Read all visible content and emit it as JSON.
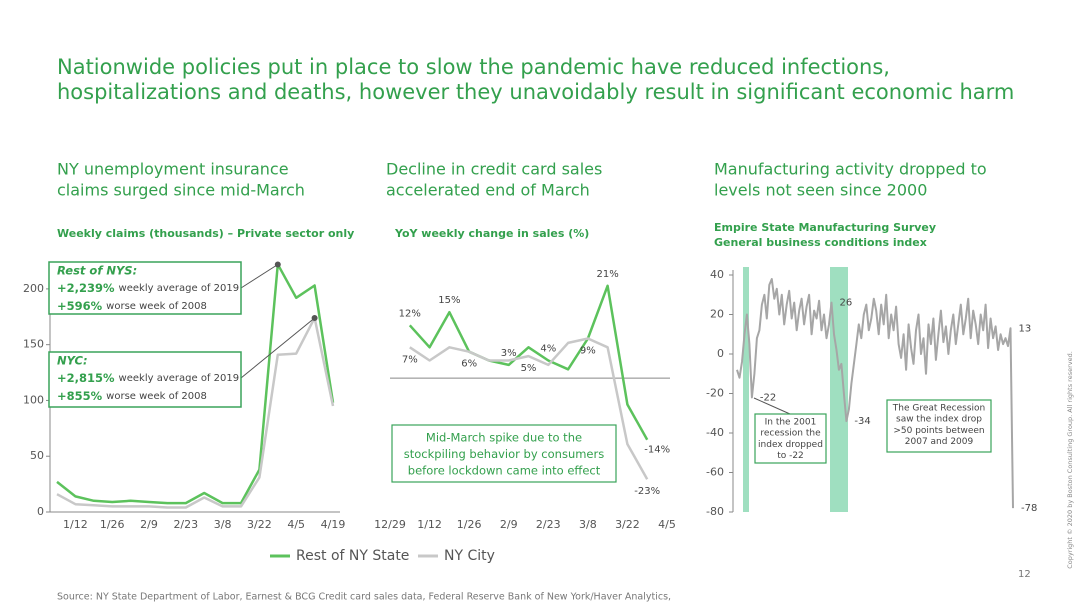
{
  "title": [
    "Nationwide policies put in place to slow the pandemic have reduced infections,",
    "hospitalizations and deaths, however they unavoidably result in significant economic harm"
  ],
  "chart_data": [
    {
      "type": "line",
      "title": [
        "NY unemployment insurance",
        "claims surged since mid-March"
      ],
      "subtitle": "Weekly claims (thousands) – Private sector only",
      "categories": [
        null,
        "1/12",
        null,
        "1/26",
        null,
        "2/9",
        null,
        "2/23",
        null,
        "3/8",
        null,
        "3/22",
        null,
        "4/5",
        null,
        "4/19"
      ],
      "series": [
        {
          "name": "Rest of NY State",
          "color": "#5cc25c",
          "values": [
            27,
            14,
            10,
            9,
            10,
            9,
            8,
            8,
            17,
            8,
            8,
            38,
            222,
            192,
            203,
            98
          ]
        },
        {
          "name": "NY City",
          "color": "#c8c8c8",
          "values": [
            16,
            7,
            6,
            5,
            5,
            5,
            4,
            4,
            13,
            5,
            5,
            31,
            141,
            142,
            174,
            95
          ]
        }
      ],
      "ylim": [
        0,
        225
      ],
      "yticks": [
        0,
        50,
        100,
        150,
        200
      ],
      "annotations": [
        {
          "heading": "Rest of NYS:",
          "lines": [
            {
              "value": "+2,239%",
              "text": "weekly average of 2019"
            },
            {
              "value": "+596%",
              "text": "worse week of 2008"
            }
          ]
        },
        {
          "heading": "NYC:",
          "lines": [
            {
              "value": "+2,815%",
              "text": "weekly average of 2019"
            },
            {
              "value": "+855%",
              "text": "worse week of 2008"
            }
          ]
        }
      ]
    },
    {
      "type": "line",
      "title": [
        "Decline in credit card sales",
        "accelerated end of March"
      ],
      "subtitle": "YoY weekly change in sales (%)",
      "categories": [
        "12/29",
        null,
        "1/12",
        null,
        "1/26",
        null,
        "2/9",
        null,
        "2/23",
        null,
        "3/8",
        null,
        "3/22",
        null,
        "4/5"
      ],
      "series": [
        {
          "name": "Rest of NY State",
          "color": "#5cc25c",
          "values": [
            null,
            12,
            7,
            15,
            6,
            4,
            3,
            7,
            4,
            2,
            9,
            21,
            -6,
            -14,
            null
          ],
          "value_labels": [
            null,
            "12%",
            null,
            "15%",
            null,
            null,
            "3%",
            null,
            "4%",
            null,
            null,
            "21%",
            null,
            "-14%",
            null
          ]
        },
        {
          "name": "NY City",
          "color": "#c8c8c8",
          "values": [
            null,
            7,
            4,
            7,
            6,
            4,
            4,
            5,
            3,
            8,
            9,
            7,
            -15,
            -23,
            null
          ],
          "value_labels": [
            null,
            "7%",
            null,
            null,
            "6%",
            null,
            null,
            "5%",
            null,
            null,
            "9%",
            null,
            null,
            "-23%",
            null
          ]
        }
      ],
      "ylim": [
        -30,
        28
      ],
      "annotations": [
        {
          "lines": [
            "Mid-March spike due to the",
            "stockpiling behavior by consumers",
            "before lockdown came into effect"
          ]
        }
      ]
    },
    {
      "type": "line",
      "title": [
        "Manufacturing activity dropped to",
        "levels not seen since 2000"
      ],
      "subtitle": [
        "Empire State Manufacturing Survey",
        "General business conditions index"
      ],
      "series": [
        {
          "color": "#a6a6a6",
          "values": [
            -8,
            -12,
            -4,
            10,
            20,
            5,
            -22,
            -10,
            8,
            12,
            25,
            30,
            18,
            35,
            38,
            28,
            33,
            20,
            30,
            15,
            25,
            32,
            18,
            26,
            12,
            22,
            28,
            15,
            24,
            30,
            10,
            22,
            18,
            27,
            12,
            20,
            8,
            15,
            26,
            10,
            2,
            -8,
            -5,
            -20,
            -34,
            -28,
            -15,
            -5,
            5,
            15,
            8,
            20,
            25,
            12,
            18,
            28,
            22,
            10,
            25,
            15,
            30,
            8,
            20,
            12,
            24,
            5,
            -2,
            10,
            -8,
            15,
            3,
            -5,
            12,
            20,
            0,
            8,
            -10,
            15,
            5,
            18,
            -3,
            10,
            22,
            6,
            14,
            0,
            12,
            20,
            5,
            15,
            25,
            10,
            18,
            28,
            8,
            22,
            15,
            5,
            20,
            12,
            25,
            3,
            18,
            8,
            14,
            2,
            10,
            5,
            8,
            4,
            13,
            -78
          ],
          "value_labels": [
            null,
            null,
            null,
            null,
            null,
            null,
            "-22",
            null,
            null,
            null,
            null,
            null,
            null,
            null,
            null,
            null,
            null,
            null,
            null,
            null,
            null,
            null,
            null,
            null,
            null,
            null,
            null,
            null,
            null,
            null,
            null,
            null,
            null,
            null,
            null,
            null,
            null,
            null,
            "26",
            null,
            null,
            null,
            null,
            null,
            "-34",
            null,
            null,
            null,
            null,
            null,
            null,
            null,
            null,
            null,
            null,
            null,
            null,
            null,
            null,
            null,
            null,
            null,
            null,
            null,
            null,
            null,
            null,
            null,
            null,
            null,
            null,
            null,
            null,
            null,
            null,
            null,
            null,
            null,
            null,
            null,
            null,
            null,
            null,
            null,
            null,
            null,
            null,
            null,
            null,
            null,
            null,
            null,
            null,
            null,
            null,
            null,
            null,
            null,
            null,
            null,
            null,
            null,
            null,
            null,
            null,
            null,
            null,
            null,
            null,
            null,
            "13",
            "-78"
          ]
        }
      ],
      "ylim": [
        -80,
        40
      ],
      "yticks": [
        -80,
        -60,
        -40,
        -20,
        0,
        20,
        40
      ],
      "annotations": [
        {
          "lines": [
            "In the 2001",
            "recession the",
            "index dropped",
            "to -22"
          ]
        },
        {
          "lines": [
            "The Great Recession",
            "saw the index drop",
            ">50 points between",
            "2007 and 2009"
          ]
        }
      ]
    }
  ],
  "source": "Source: NY State Department of Labor, Earnest & BCG Credit card sales data, Federal Reserve Bank of New York/Haver Analytics,",
  "page_number": "12",
  "copyright": "Copyright © 2020 by Boston Consulting Group. All rights reserved."
}
